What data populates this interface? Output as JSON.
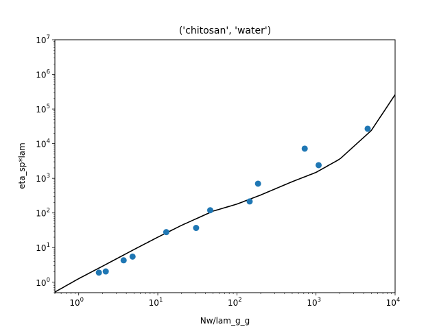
{
  "chart_data": {
    "type": "scatter",
    "title": "('chitosan', 'water')",
    "xlabel": "Nw/lam_g_g",
    "ylabel": "eta_sp*lam",
    "xscale": "log",
    "yscale": "log",
    "xlim": [
      0.5,
      10000
    ],
    "ylim": [
      0.5,
      10000000
    ],
    "grid": false,
    "x_ticks": [
      {
        "base": "10",
        "exp": "0",
        "value": 1
      },
      {
        "base": "10",
        "exp": "1",
        "value": 10
      },
      {
        "base": "10",
        "exp": "2",
        "value": 100
      },
      {
        "base": "10",
        "exp": "3",
        "value": 1000
      },
      {
        "base": "10",
        "exp": "4",
        "value": 10000
      }
    ],
    "y_ticks": [
      {
        "base": "10",
        "exp": "0",
        "value": 1
      },
      {
        "base": "10",
        "exp": "1",
        "value": 10
      },
      {
        "base": "10",
        "exp": "2",
        "value": 100
      },
      {
        "base": "10",
        "exp": "3",
        "value": 1000
      },
      {
        "base": "10",
        "exp": "4",
        "value": 10000
      },
      {
        "base": "10",
        "exp": "5",
        "value": 100000
      },
      {
        "base": "10",
        "exp": "6",
        "value": 1000000
      },
      {
        "base": "10",
        "exp": "7",
        "value": 10000000
      }
    ],
    "points": {
      "color": "#1f77b4",
      "x": [
        1.8,
        2.2,
        3.7,
        4.8,
        12.8,
        30.5,
        46.0,
        145.0,
        185.0,
        720.0,
        1080.0,
        4500.0
      ],
      "y": [
        1.9,
        2.05,
        4.3,
        5.5,
        28.0,
        37.0,
        120.0,
        215.0,
        700.0,
        7200.0,
        2400.0,
        27000.0
      ]
    },
    "curve": {
      "color": "#000000",
      "x": [
        0.5,
        1,
        2,
        5,
        10,
        20,
        50,
        100,
        200,
        500,
        1000,
        2000,
        5000,
        10000
      ],
      "y": [
        0.52,
        1.27,
        2.9,
        8.8,
        20.0,
        44.0,
        113.0,
        180.0,
        330.0,
        800.0,
        1480.0,
        3600.0,
        24000.0,
        260000.0
      ]
    }
  }
}
